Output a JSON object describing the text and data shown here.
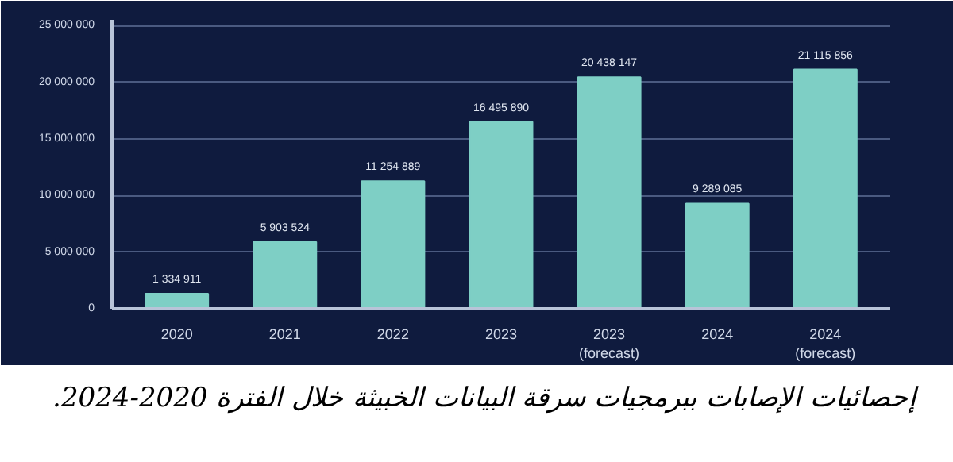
{
  "chart_data": {
    "type": "bar",
    "categories": [
      "2020",
      "2021",
      "2022",
      "2023",
      "2023\n(forecast)",
      "2024",
      "2024\n(forecast)"
    ],
    "values": [
      1334911,
      5903524,
      11254889,
      16495890,
      20438147,
      9289085,
      21115856
    ],
    "color": "#7ecfc5",
    "ylim": [
      0,
      25500000
    ],
    "yticks": [
      {
        "value": 0,
        "label": "0"
      },
      {
        "value": 5000000,
        "label": "5 000 000"
      },
      {
        "value": 10000000,
        "label": "10 000 000"
      },
      {
        "value": 15000000,
        "label": "15 000 000"
      },
      {
        "value": 20000000,
        "label": "20 000 000"
      },
      {
        "value": 25000000,
        "label": "25 000 000"
      }
    ],
    "grid": "y",
    "data_labels": true,
    "annotations": [
      "إحصائيات الإصابات ببرمجيات سرقة البيانات الخبيثة خلال الفترة 2020-2024."
    ]
  }
}
